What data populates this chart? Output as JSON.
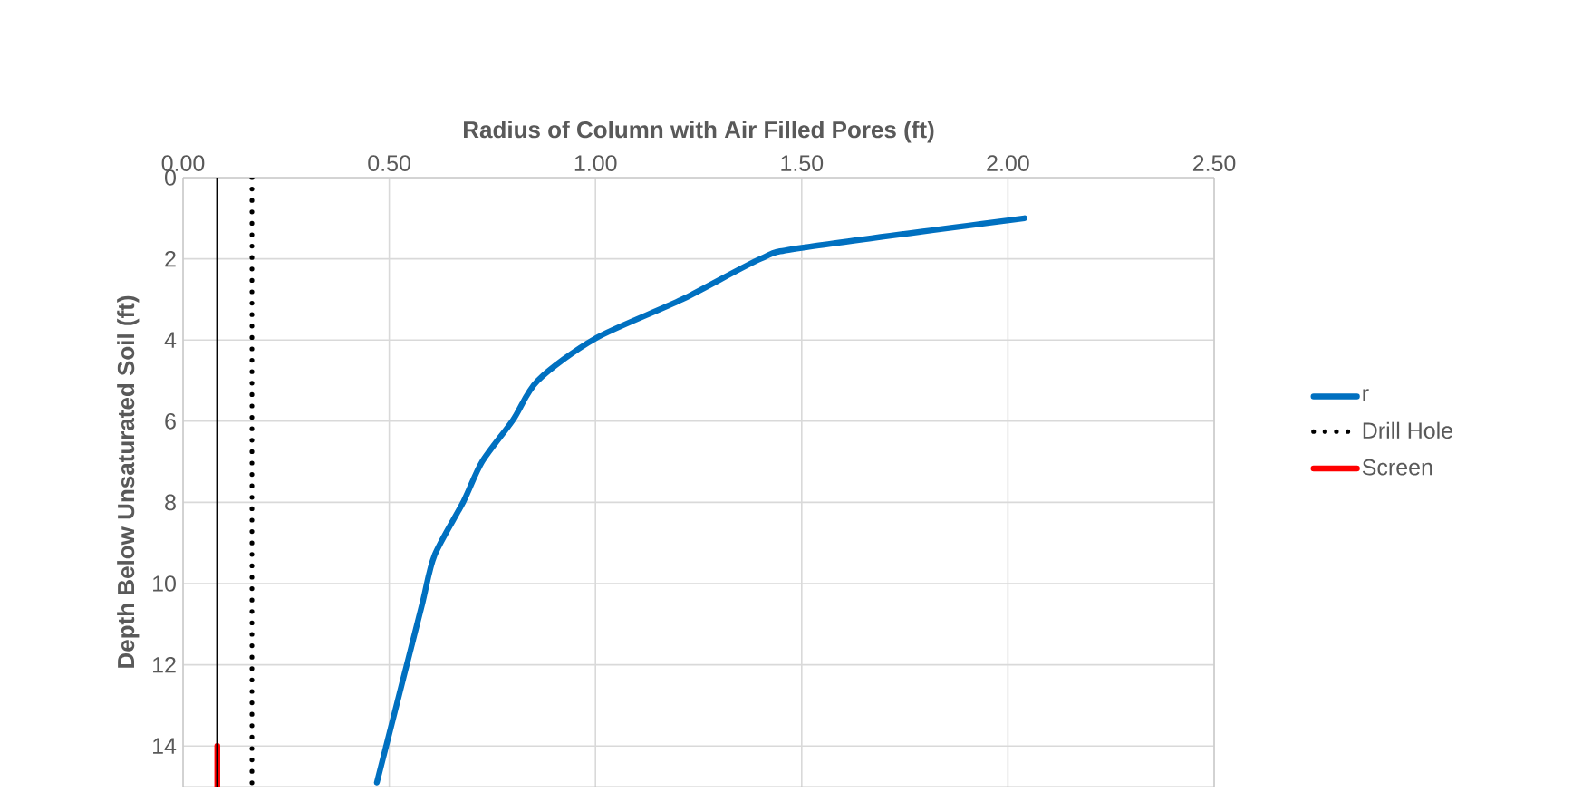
{
  "chart_data": {
    "type": "line",
    "xlabel": "Radius of Column with Air Filled Pores (ft)",
    "ylabel": "Depth Below Unsaturated Soil (ft)",
    "xlim": [
      0,
      2.5
    ],
    "xticks": [
      {
        "value": 0,
        "label": "0.00"
      },
      {
        "value": 0.5,
        "label": "0.50"
      },
      {
        "value": 1,
        "label": "1.00"
      },
      {
        "value": 1.5,
        "label": "1.50"
      },
      {
        "value": 2,
        "label": "2.00"
      },
      {
        "value": 2.5,
        "label": "2.50"
      }
    ],
    "ylim": [
      15,
      0
    ],
    "yticks": [
      0,
      2,
      4,
      6,
      8,
      10,
      12,
      14
    ],
    "grid": true,
    "legend": "right",
    "series": [
      {
        "name": "r",
        "color": "#0070c0",
        "x": [
          2.04,
          1.5,
          1.4,
          1.21,
          1.0,
          0.86,
          0.8,
          0.725,
          0.68,
          0.61,
          0.58,
          0.535,
          0.47
        ],
        "values": [
          1,
          1.73,
          2,
          3,
          3.96,
          5,
          5.97,
          7,
          7.98,
          9.3,
          10.5,
          12.3,
          14.9
        ]
      },
      {
        "name": "Drill Hole",
        "color": "#000000",
        "line_style": "dotted",
        "x": [
          0.167,
          0.167
        ],
        "values": [
          0,
          15
        ]
      },
      {
        "name": "Screen",
        "color": "#ff0000",
        "x": [
          0.083,
          0.083
        ],
        "values": [
          14,
          15
        ]
      },
      {
        "color": "#000000",
        "x": [
          0.083,
          0.083
        ],
        "values": [
          0,
          15
        ]
      }
    ]
  }
}
